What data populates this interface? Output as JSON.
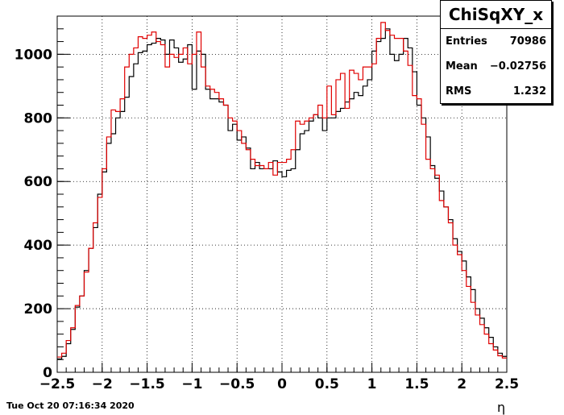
{
  "stats": {
    "title": "ChiSqXY_x",
    "rows": [
      {
        "label": "Entries",
        "value": "70986"
      },
      {
        "label": "Mean",
        "value": "−0.02756"
      },
      {
        "label": "RMS",
        "value": "1.232"
      }
    ]
  },
  "footer": {
    "timestamp": "Tue Oct 20 07:16:34 2020"
  },
  "chart_data": {
    "type": "line",
    "title": "ChiSqXY_x",
    "xlabel": "η",
    "ylabel": "",
    "xlim": [
      -2.5,
      2.5
    ],
    "ylim": [
      0,
      1120
    ],
    "grid": true,
    "x_ticks": [
      "−2.5",
      "−2",
      "−1.5",
      "−1",
      "−0.5",
      "0",
      "0.5",
      "1",
      "1.5",
      "2",
      "2.5"
    ],
    "y_ticks": [
      "0",
      "200",
      "400",
      "600",
      "800",
      "1000"
    ],
    "bin_edges_start": -2.5,
    "bin_width": 0.05,
    "series": [
      {
        "color": "#000000",
        "values": [
          42,
          50,
          90,
          135,
          205,
          240,
          320,
          390,
          455,
          560,
          630,
          720,
          750,
          800,
          820,
          865,
          930,
          970,
          1005,
          1010,
          1030,
          1035,
          1050,
          1045,
          1000,
          1045,
          1020,
          975,
          985,
          1030,
          890,
          1010,
          1000,
          890,
          860,
          860,
          850,
          840,
          760,
          780,
          730,
          740,
          705,
          640,
          660,
          640,
          640,
          640,
          665,
          630,
          615,
          635,
          640,
          700,
          750,
          760,
          790,
          810,
          800,
          760,
          800,
          800,
          820,
          830,
          850,
          860,
          880,
          870,
          900,
          920,
          1010,
          1040,
          1050,
          1080,
          1000,
          980,
          1000,
          1050,
          1020,
          945,
          840,
          800,
          740,
          650,
          610,
          570,
          520,
          480,
          420,
          380,
          350,
          300,
          260,
          200,
          170,
          140,
          110,
          80,
          60,
          50
        ]
      },
      {
        "color": "#e00000",
        "values": [
          48,
          60,
          100,
          140,
          210,
          240,
          315,
          390,
          470,
          550,
          640,
          740,
          825,
          820,
          860,
          960,
          1000,
          1020,
          1055,
          1050,
          1060,
          1070,
          1040,
          1030,
          960,
          1000,
          990,
          1000,
          1020,
          970,
          1000,
          1070,
          960,
          900,
          890,
          880,
          860,
          840,
          800,
          790,
          760,
          720,
          700,
          670,
          650,
          650,
          640,
          660,
          620,
          660,
          660,
          670,
          700,
          790,
          780,
          790,
          800,
          810,
          840,
          800,
          900,
          810,
          920,
          940,
          830,
          950,
          940,
          920,
          960,
          960,
          970,
          1050,
          1100,
          1075,
          1060,
          1050,
          1050,
          1010,
          965,
          870,
          860,
          780,
          670,
          640,
          620,
          540,
          520,
          470,
          400,
          370,
          320,
          270,
          220,
          180,
          150,
          120,
          90,
          70,
          52,
          45
        ]
      }
    ]
  }
}
